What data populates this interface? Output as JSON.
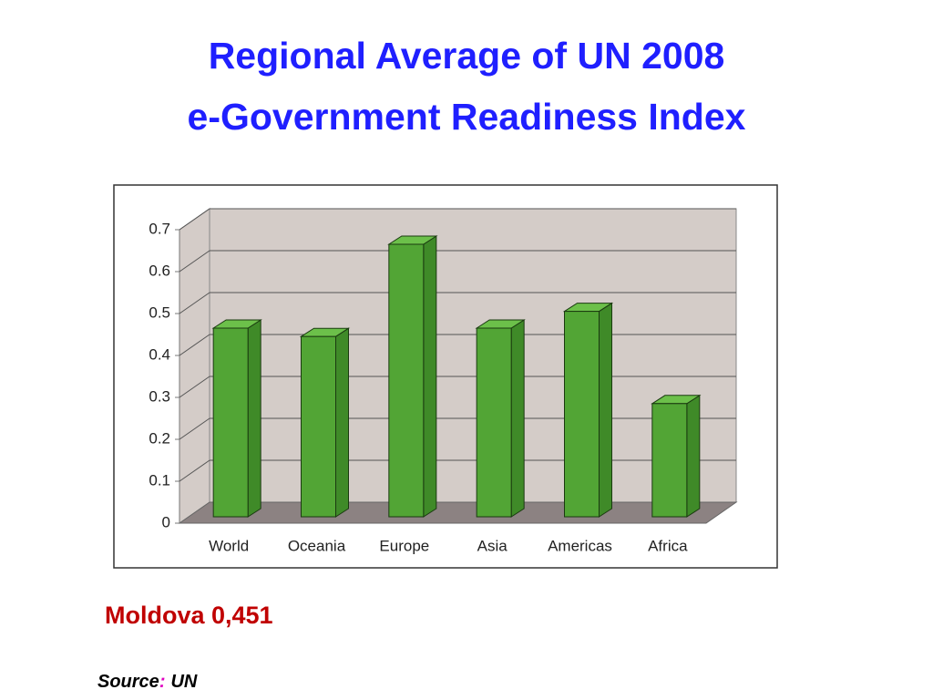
{
  "chart_data": {
    "type": "bar",
    "title": [
      "Regional Average of UN 2008",
      "e-Government Readiness Index"
    ],
    "categories": [
      "World",
      "Oceania",
      "Europe",
      "Asia",
      "Americas",
      "Africa"
    ],
    "values": [
      0.45,
      0.43,
      0.65,
      0.45,
      0.49,
      0.27
    ],
    "color": "#52a535",
    "ylim": [
      0,
      0.7
    ],
    "yticks": [
      0,
      0.1,
      0.2,
      0.3,
      0.4,
      0.5,
      0.6,
      0.7
    ],
    "grid": true,
    "annotation": "Moldova 0,451",
    "source_label": "Source",
    "source_separator": ":",
    "source": "UN"
  }
}
